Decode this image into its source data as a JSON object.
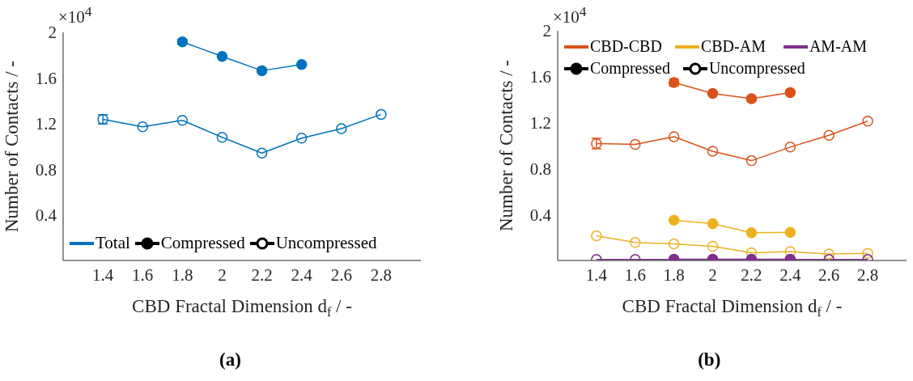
{
  "chart_data": [
    {
      "type": "line",
      "ylabel": "Number of Contacts / -",
      "xlabel": "CBD Fractal Dimension d$_{f}$ / -",
      "xlim": [
        1.2,
        3.0
      ],
      "xticks": [
        1.4,
        1.6,
        1.8,
        2,
        2.2,
        2.4,
        2.6,
        2.8
      ],
      "ylim": [
        0,
        2
      ],
      "yticks": [
        0.4,
        0.8,
        1.2,
        1.6,
        2
      ],
      "legend": "bottom left",
      "marker": "circle",
      "line_style": "solid",
      "annotations": [
        "×10$^{4}$",
        "(a)",
        "Compressed",
        "Uncompressed"
      ],
      "series": [
        {
          "name": "Total",
          "color": "#0072bd",
          "x": [
            1.8,
            2,
            2.2,
            2.4
          ],
          "values": [
            1.917,
            1.789,
            1.664,
            1.718
          ],
          "errors": [
            0.02,
            null,
            null,
            null
          ]
        },
        {
          "color": "#0072bd",
          "colors": [
            "#ffffff",
            "#ffffff",
            "#ffffff",
            "#ffffff",
            "#ffffff",
            "#ffffff",
            "#ffffff",
            "#ffffff"
          ],
          "x": [
            1.4,
            1.6,
            1.8,
            2,
            2.2,
            2.4,
            2.6,
            2.8
          ],
          "values": [
            1.238,
            1.172,
            1.229,
            1.08,
            0.941,
            1.073,
            1.156,
            1.281
          ],
          "errors": [
            0.04,
            null,
            null,
            null,
            null,
            null,
            null,
            null
          ]
        }
      ]
    },
    {
      "type": "line",
      "ylabel": "Number of Contacts / -",
      "xlabel": "CBD Fractal Dimension d$_{f}$ / -",
      "xlim": [
        1.2,
        3.0
      ],
      "xticks": [
        1.4,
        1.6,
        1.8,
        2,
        2.2,
        2.4,
        2.6,
        2.8
      ],
      "ylim": [
        0,
        2
      ],
      "yticks": [
        0.4,
        0.8,
        1.2,
        1.6,
        2
      ],
      "legend": "top left",
      "marker": "circle",
      "line_style": "solid",
      "annotations": [
        "×10$^{4}$",
        "(b)",
        "Compressed",
        "Uncompressed"
      ],
      "series": [
        {
          "name": "CBD-CBD",
          "color": "#d95319",
          "x": [
            1.8,
            2,
            2.2,
            2.4
          ],
          "values": [
            1.549,
            1.454,
            1.408,
            1.462
          ],
          "errors": [
            0.03,
            null,
            0.02,
            null
          ]
        },
        {
          "color": "#d95319",
          "colors": [
            "#ffffff",
            "#ffffff",
            "#ffffff",
            "#ffffff",
            "#ffffff",
            "#ffffff",
            "#ffffff",
            "#ffffff"
          ],
          "x": [
            1.4,
            1.6,
            1.8,
            2,
            2.2,
            2.4,
            2.6,
            2.8
          ],
          "values": [
            1.018,
            1.01,
            1.077,
            0.951,
            0.869,
            0.987,
            1.09,
            1.213
          ],
          "errors": [
            0.046,
            null,
            null,
            null,
            null,
            null,
            null,
            null
          ]
        },
        {
          "name": "CBD-AM",
          "color": "#edb120",
          "x": [
            1.8,
            2,
            2.2,
            2.4
          ],
          "values": [
            0.351,
            0.321,
            0.241,
            0.244
          ]
        },
        {
          "color": "#edb120",
          "colors": [
            "#ffffff",
            "#ffffff",
            "#ffffff",
            "#ffffff",
            "#ffffff",
            "#ffffff",
            "#ffffff",
            "#ffffff"
          ],
          "x": [
            1.4,
            1.6,
            1.8,
            2,
            2.2,
            2.4,
            2.6,
            2.8
          ],
          "values": [
            0.215,
            0.156,
            0.144,
            0.123,
            0.067,
            0.077,
            0.056,
            0.062
          ]
        },
        {
          "name": "AM-AM",
          "color": "#7e2f8e",
          "x": [
            1.8,
            2,
            2.2,
            2.4
          ],
          "values": [
            0.01,
            0.01,
            0.01,
            0.01
          ]
        },
        {
          "color": "#7e2f8e",
          "colors": [
            "#ffffff",
            "#ffffff",
            "#ffffff",
            "#ffffff",
            "#ffffff",
            "#ffffff",
            "#ffffff",
            "#ffffff"
          ],
          "x": [
            1.4,
            1.6,
            1.8,
            2,
            2.2,
            2.4,
            2.6,
            2.8
          ],
          "values": [
            0.008,
            0.008,
            0.008,
            0.008,
            0.008,
            0.008,
            0.008,
            0.008
          ]
        }
      ]
    }
  ]
}
